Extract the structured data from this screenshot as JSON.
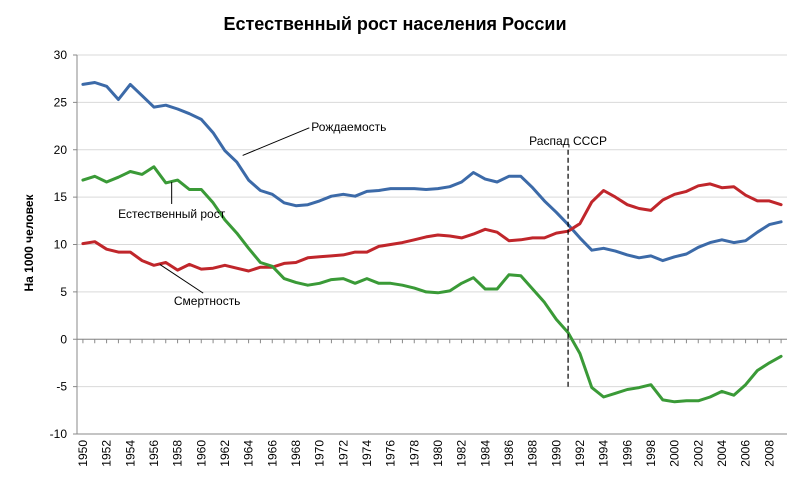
{
  "chart_data": {
    "type": "line",
    "title": "Естественный рост населения России",
    "ylabel": "На 1000 человек",
    "xlabel": "",
    "ylim": [
      -10,
      30
    ],
    "yticks": [
      -10,
      -5,
      0,
      5,
      10,
      15,
      20,
      25,
      30
    ],
    "xlim": [
      1950,
      2009
    ],
    "xticks": [
      1950,
      1952,
      1954,
      1956,
      1958,
      1960,
      1962,
      1964,
      1966,
      1968,
      1970,
      1972,
      1974,
      1976,
      1978,
      1980,
      1982,
      1984,
      1986,
      1988,
      1990,
      1992,
      1994,
      1996,
      1998,
      2000,
      2002,
      2004,
      2006,
      2008
    ],
    "grid": true,
    "legend": "none",
    "x": [
      1950,
      1951,
      1952,
      1953,
      1954,
      1955,
      1956,
      1957,
      1958,
      1959,
      1960,
      1961,
      1962,
      1963,
      1964,
      1965,
      1966,
      1967,
      1968,
      1969,
      1970,
      1971,
      1972,
      1973,
      1974,
      1975,
      1976,
      1977,
      1978,
      1979,
      1980,
      1981,
      1982,
      1983,
      1984,
      1985,
      1986,
      1987,
      1988,
      1989,
      1990,
      1991,
      1992,
      1993,
      1994,
      1995,
      1996,
      1997,
      1998,
      1999,
      2000,
      2001,
      2002,
      2003,
      2004,
      2005,
      2006,
      2007,
      2008,
      2009
    ],
    "series": [
      {
        "name": "Рождаемость",
        "color": "#3c6aa8",
        "values": [
          26.9,
          27.1,
          26.7,
          25.3,
          26.9,
          25.7,
          24.5,
          24.7,
          24.3,
          23.8,
          23.2,
          21.8,
          19.9,
          18.7,
          16.8,
          15.7,
          15.3,
          14.4,
          14.1,
          14.2,
          14.6,
          15.1,
          15.3,
          15.1,
          15.6,
          15.7,
          15.9,
          15.9,
          15.9,
          15.8,
          15.9,
          16.1,
          16.6,
          17.6,
          16.9,
          16.6,
          17.2,
          17.2,
          16.0,
          14.6,
          13.4,
          12.1,
          10.7,
          9.4,
          9.6,
          9.3,
          8.9,
          8.6,
          8.8,
          8.3,
          8.7,
          9.0,
          9.7,
          10.2,
          10.5,
          10.2,
          10.4,
          11.3,
          12.1,
          12.4
        ]
      },
      {
        "name": "Смертность",
        "color": "#c0262b",
        "values": [
          10.1,
          10.3,
          9.5,
          9.2,
          9.2,
          8.3,
          7.8,
          8.1,
          7.3,
          7.9,
          7.4,
          7.5,
          7.8,
          7.5,
          7.2,
          7.6,
          7.6,
          8.0,
          8.1,
          8.6,
          8.7,
          8.8,
          8.9,
          9.2,
          9.2,
          9.8,
          10.0,
          10.2,
          10.5,
          10.8,
          11.0,
          10.9,
          10.7,
          11.1,
          11.6,
          11.3,
          10.4,
          10.5,
          10.7,
          10.7,
          11.2,
          11.4,
          12.2,
          14.5,
          15.7,
          15.0,
          14.2,
          13.8,
          13.6,
          14.7,
          15.3,
          15.6,
          16.2,
          16.4,
          16.0,
          16.1,
          15.2,
          14.6,
          14.6,
          14.2
        ]
      },
      {
        "name": "Естественный рост",
        "color": "#3a9a37",
        "values": [
          16.8,
          17.2,
          16.6,
          17.1,
          17.7,
          17.4,
          18.2,
          16.5,
          16.8,
          15.8,
          15.8,
          14.4,
          12.6,
          11.2,
          9.6,
          8.1,
          7.7,
          6.4,
          6.0,
          5.7,
          5.9,
          6.3,
          6.4,
          5.9,
          6.4,
          5.9,
          5.9,
          5.7,
          5.4,
          5.0,
          4.9,
          5.1,
          5.9,
          6.5,
          5.3,
          5.3,
          6.8,
          6.7,
          5.3,
          3.9,
          2.1,
          0.7,
          -1.5,
          -5.1,
          -6.1,
          -5.7,
          -5.3,
          -5.1,
          -4.8,
          -6.4,
          -6.6,
          -6.5,
          -6.5,
          -6.1,
          -5.5,
          -5.9,
          -4.8,
          -3.3,
          -2.5,
          -1.8
        ]
      }
    ],
    "annotations": [
      {
        "text": "Рождаемость",
        "x": 1969.3,
        "y": 22.0,
        "point_x": 1963.5,
        "point_y": 19.4
      },
      {
        "text": "Естественный рост",
        "x": 1957.5,
        "y": 12.8,
        "point_x": 1957.5,
        "point_y": 16.6
      },
      {
        "text": "Смертность",
        "x": 1960.5,
        "y": 3.6,
        "point_x": 1956.5,
        "point_y": 7.9
      },
      {
        "text": "Распад СССР",
        "x": 1991.0,
        "y": 20.5
      }
    ],
    "reference_line": {
      "x": 1991,
      "y_from": -5.3,
      "y_to": 20.0,
      "style": "dashed"
    }
  }
}
